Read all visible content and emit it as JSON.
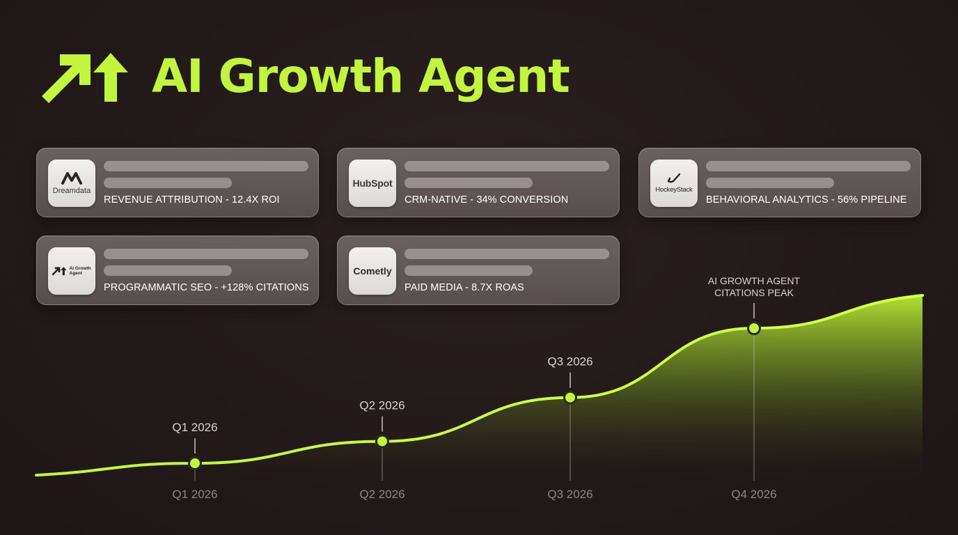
{
  "header": {
    "title": "AI Growth Agent",
    "logo_icon": "growth-arrows-icon",
    "accent_color": "#c3f53c"
  },
  "cards": [
    {
      "logo_label": "Dreamdata",
      "logo_icon": "dreamdata-logo-icon",
      "caption": "REVENUE ATTRIBUTION - 12.4X ROI"
    },
    {
      "logo_label": "HubSpot",
      "logo_icon": "hubspot-logo-icon",
      "caption": "CRM-NATIVE - 34% CONVERSION"
    },
    {
      "logo_label": "HockeyStack",
      "logo_icon": "hockeystack-logo-icon",
      "caption": "BEHAVIORAL ANALYTICS - 56% PIPELINE"
    },
    {
      "logo_label": "AI Growth Agent",
      "logo_icon": "growth-arrows-icon",
      "caption": "PROGRAMMATIC SEO - +128% CITATIONS"
    },
    {
      "logo_label": "Cometly",
      "logo_icon": "cometly-logo-icon",
      "caption": "PAID MEDIA - 8.7X ROAS"
    }
  ],
  "chart_data": {
    "type": "area",
    "x_ticks": [
      "Q1 2026",
      "Q2 2026",
      "Q3 2026",
      "Q4 2026"
    ],
    "milestones": [
      {
        "label": "Q1 2026",
        "level": 0.08
      },
      {
        "label": "Q2 2026",
        "level": 0.2
      },
      {
        "label": "Q3 2026",
        "level": 0.44
      },
      {
        "label": "AI GROWTH AGENT\nCITATIONS PEAK",
        "level": 0.82
      }
    ],
    "end_level": 1.0,
    "line_color": "#c3f53c",
    "grid": false
  }
}
